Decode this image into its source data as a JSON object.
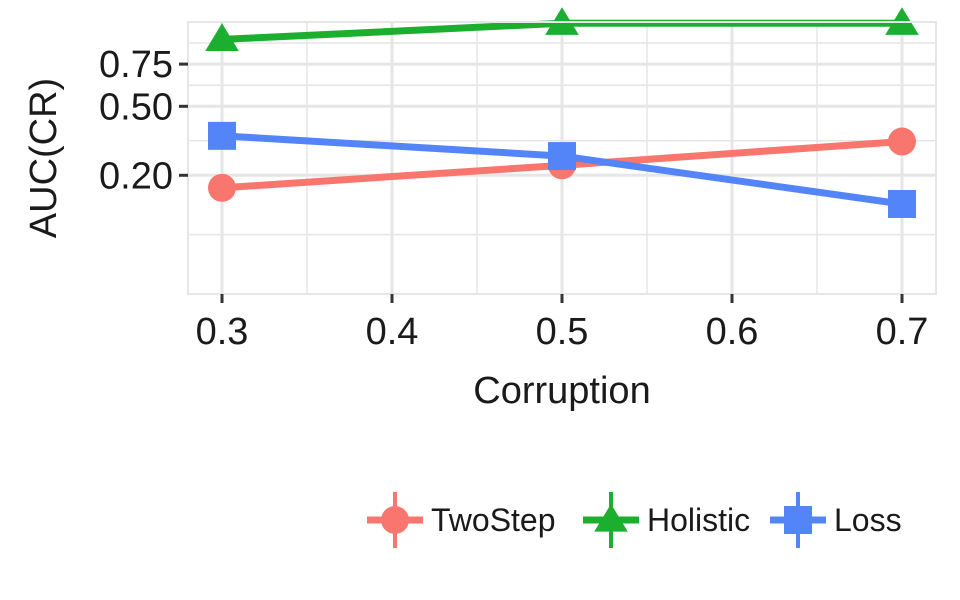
{
  "chart_data": {
    "type": "line",
    "x": [
      0.3,
      0.5,
      0.7
    ],
    "series": [
      {
        "name": "TwoStep",
        "values": [
          0.16,
          0.235,
          0.33
        ],
        "color": "#F8766D",
        "marker": "circle"
      },
      {
        "name": "Holistic",
        "values": [
          0.92,
          1.04,
          1.04
        ],
        "color": "#1CAF2F",
        "marker": "triangle"
      },
      {
        "name": "Loss",
        "values": [
          0.355,
          0.27,
          0.115
        ],
        "color": "#5485F8",
        "marker": "square"
      }
    ],
    "xlabel": "Corruption",
    "ylabel": "AUC(CR)",
    "xlim": [
      0.28,
      0.72
    ],
    "ylim": [
      0.0,
      1.05
    ],
    "y_scale": "sqrt",
    "x_ticks": [
      {
        "value": 0.3,
        "label": "0.3"
      },
      {
        "value": 0.4,
        "label": "0.4"
      },
      {
        "value": 0.5,
        "label": "0.5"
      },
      {
        "value": 0.6,
        "label": "0.6"
      },
      {
        "value": 0.7,
        "label": "0.7"
      }
    ],
    "y_ticks": [
      {
        "value": 0.2,
        "label": "0.20"
      },
      {
        "value": 0.5,
        "label": "0.50"
      },
      {
        "value": 0.75,
        "label": "0.75"
      }
    ],
    "grid": true,
    "legend_position": "bottom-right",
    "panel_background": "#ffffff",
    "grid_color": "#e6e6e6"
  }
}
